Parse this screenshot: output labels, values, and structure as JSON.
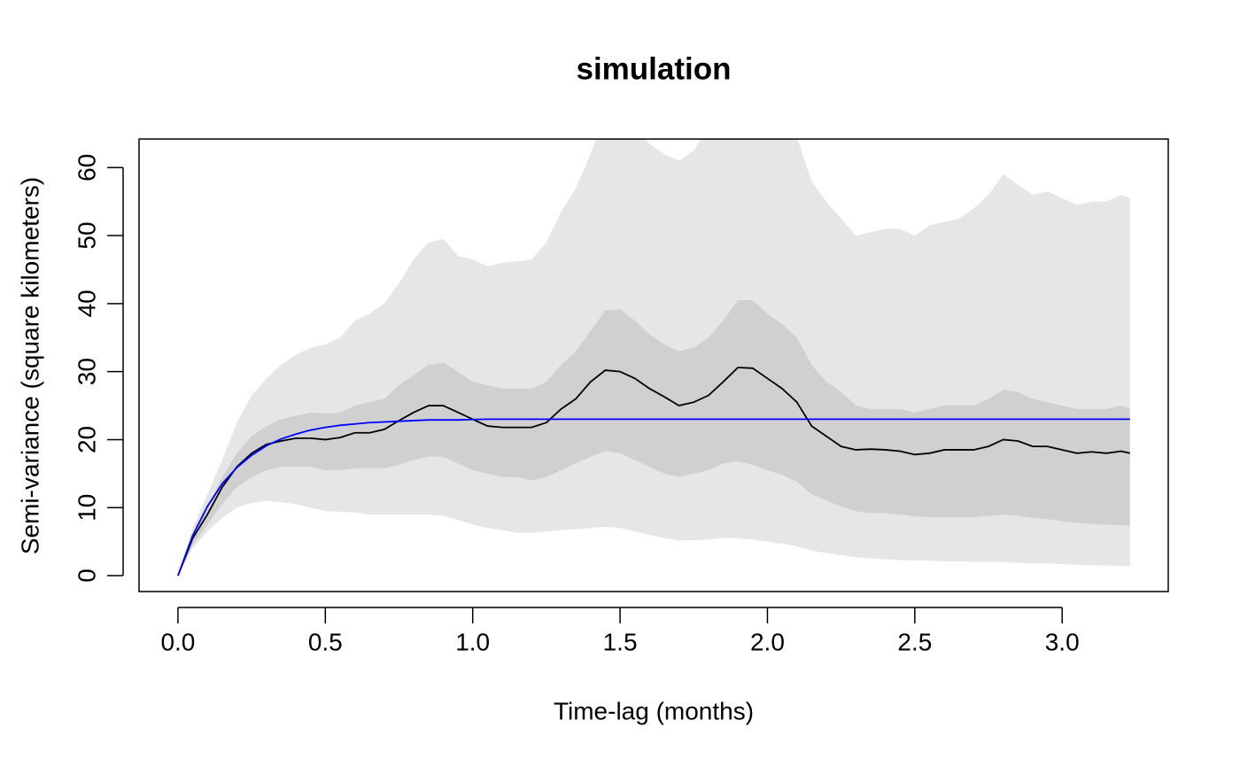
{
  "chart_data": {
    "type": "line",
    "title": "simulation",
    "x_label": "Time-lag (months)",
    "y_label": "Semi-variance (square kilometers)",
    "xlim": [
      -0.132,
      3.36
    ],
    "ylim": [
      -2.34,
      64.2
    ],
    "xticks": [
      {
        "value": 0,
        "label": "0.0"
      },
      0.5,
      {
        "value": 1,
        "label": "1.0"
      },
      1.5,
      {
        "value": 2,
        "label": "2.0"
      },
      2.5,
      {
        "value": 3,
        "label": "3.0"
      }
    ],
    "yticks": [
      0,
      10,
      20,
      30,
      40,
      50,
      60
    ],
    "x": [
      0,
      0.05,
      0.1,
      0.15,
      0.2,
      0.25,
      0.3,
      0.35,
      0.4,
      0.45,
      0.5,
      0.55,
      0.6,
      0.65,
      0.7,
      0.75,
      0.8,
      0.85,
      0.9,
      0.95,
      1.0,
      1.05,
      1.1,
      1.15,
      1.2,
      1.25,
      1.3,
      1.35,
      1.4,
      1.45,
      1.5,
      1.55,
      1.6,
      1.65,
      1.7,
      1.75,
      1.8,
      1.85,
      1.9,
      1.95,
      2.0,
      2.05,
      2.1,
      2.15,
      2.2,
      2.25,
      2.3,
      2.35,
      2.4,
      2.45,
      2.5,
      2.55,
      2.6,
      2.65,
      2.7,
      2.75,
      2.8,
      2.85,
      2.9,
      2.95,
      3.0,
      3.05,
      3.1,
      3.15,
      3.2,
      3.23
    ],
    "bands": [
      {
        "color": "#e6e6e6",
        "upper": [
          0,
          7,
          12,
          17,
          22.5,
          26.5,
          29,
          31,
          32.5,
          33.5,
          34,
          35,
          37.5,
          38.5,
          40,
          43,
          46.5,
          49,
          49.5,
          47,
          46.5,
          45.5,
          46,
          46.2,
          46.5,
          49,
          53.5,
          57,
          62,
          68,
          70,
          66,
          63.5,
          62,
          61,
          62.5,
          66,
          70,
          72,
          72,
          70,
          67,
          64.5,
          58,
          55,
          52.5,
          50,
          50.5,
          51,
          51,
          50,
          51.5,
          52,
          52.5,
          54,
          56,
          59,
          57.5,
          56,
          56.5,
          55.5,
          54.5,
          55,
          55,
          56,
          55.5
        ],
        "lower": [
          0,
          4,
          6.5,
          8.5,
          10,
          10.7,
          11,
          10.8,
          10.5,
          10,
          9.5,
          9.4,
          9.3,
          9,
          9,
          9,
          9,
          9,
          8.8,
          8.2,
          7.5,
          7,
          6.7,
          6.3,
          6.3,
          6.5,
          6.7,
          6.8,
          7,
          7.2,
          7,
          6.5,
          6,
          5.5,
          5.2,
          5.2,
          5.3,
          5.5,
          5.5,
          5.3,
          5,
          4.7,
          4.3,
          3.7,
          3.3,
          3,
          2.7,
          2.5,
          2.4,
          2.3,
          2.2,
          2.2,
          2.1,
          2.1,
          2,
          2,
          2,
          1.9,
          1.8,
          1.8,
          1.7,
          1.6,
          1.5,
          1.5,
          1.4,
          1.4
        ]
      },
      {
        "color": "#d0d0d0",
        "upper": [
          0,
          6,
          10,
          14.5,
          18,
          20.5,
          22,
          23,
          23.5,
          24,
          23.8,
          24,
          25,
          25.5,
          26,
          28,
          29.5,
          31,
          31.3,
          30,
          28.5,
          28,
          27.5,
          27.5,
          27.5,
          28.5,
          31,
          33,
          36,
          39,
          39.2,
          37.5,
          35.5,
          34,
          33,
          33.5,
          35,
          37.5,
          40.5,
          40.5,
          38.5,
          37,
          35,
          31,
          28.5,
          27,
          25,
          24.5,
          24.5,
          24.5,
          24,
          24.5,
          25,
          25,
          25,
          26,
          27.3,
          27,
          26,
          25.5,
          25,
          24.5,
          24.5,
          24.5,
          25,
          24.5
        ],
        "lower": [
          0,
          4.5,
          7.5,
          10.5,
          13,
          14.5,
          15.5,
          16,
          16,
          16,
          15.5,
          15.5,
          15.8,
          15.8,
          15.8,
          16.3,
          17,
          17.5,
          17.5,
          16.5,
          15.5,
          15,
          14.5,
          14.5,
          14,
          14.5,
          15.5,
          16.5,
          17.5,
          18.3,
          18,
          17,
          16,
          15,
          14.5,
          15,
          15.5,
          16.5,
          16.8,
          16.3,
          15.5,
          14.8,
          13.8,
          12,
          11,
          10.2,
          9.5,
          9.2,
          9.2,
          9,
          8.7,
          8.6,
          8.6,
          8.6,
          8.6,
          8.8,
          9,
          8.8,
          8.5,
          8.3,
          8,
          7.8,
          7.6,
          7.5,
          7.4,
          7.4
        ]
      }
    ],
    "series": [
      {
        "color": "#000000",
        "values": [
          0,
          5.5,
          9,
          13,
          16,
          18,
          19.3,
          19.8,
          20.2,
          20.2,
          20,
          20.3,
          21,
          21,
          21.5,
          22.8,
          24,
          25,
          25,
          24,
          23,
          22,
          21.8,
          21.8,
          21.8,
          22.5,
          24.5,
          26,
          28.5,
          30.2,
          30,
          29,
          27.5,
          26.3,
          25,
          25.5,
          26.5,
          28.5,
          30.6,
          30.5,
          29,
          27.5,
          25.5,
          22,
          20.5,
          19,
          18.5,
          18.6,
          18.5,
          18.3,
          17.8,
          18,
          18.5,
          18.5,
          18.5,
          19,
          20,
          19.8,
          19,
          19,
          18.5,
          18,
          18.2,
          18,
          18.3,
          18
        ]
      },
      {
        "color": "#0000ff",
        "values": [
          0,
          5.9,
          10.2,
          13.5,
          15.9,
          17.7,
          19.1,
          20.1,
          20.8,
          21.4,
          21.8,
          22.1,
          22.3,
          22.5,
          22.6,
          22.7,
          22.8,
          22.9,
          22.9,
          22.9,
          22.95,
          23,
          23,
          23,
          23,
          23,
          23,
          23,
          23,
          23,
          23,
          23,
          23,
          23,
          23,
          23,
          23,
          23,
          23,
          23,
          23,
          23,
          23,
          23,
          23,
          23,
          23,
          23,
          23,
          23,
          23,
          23,
          23,
          23,
          23,
          23,
          23,
          23,
          23,
          23,
          23,
          23,
          23,
          23,
          23,
          23
        ]
      }
    ]
  }
}
